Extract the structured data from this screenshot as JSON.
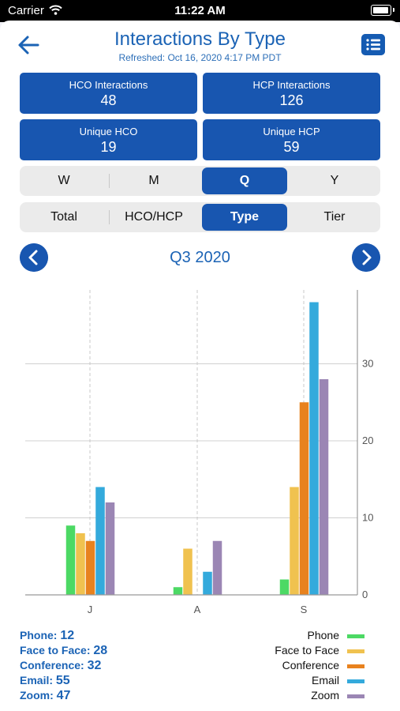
{
  "status_bar": {
    "carrier": "Carrier",
    "time": "11:22 AM"
  },
  "header": {
    "title": "Interactions By Type",
    "refreshed": "Refreshed: Oct 16, 2020 4:17 PM PDT"
  },
  "stats": [
    {
      "label": "HCO Interactions",
      "value": "48"
    },
    {
      "label": "HCP Interactions",
      "value": "126"
    },
    {
      "label": "Unique HCO",
      "value": "19"
    },
    {
      "label": "Unique HCP",
      "value": "59"
    }
  ],
  "period_selector": {
    "options": [
      "W",
      "M",
      "Q",
      "Y"
    ],
    "selected": "Q"
  },
  "view_selector": {
    "options": [
      "Total",
      "HCO/HCP",
      "Type",
      "Tier"
    ],
    "selected": "Type"
  },
  "period_nav": {
    "label": "Q3 2020"
  },
  "colors": {
    "accent": "#1856b0",
    "Phone": "#4cd964",
    "Face to Face": "#f0c24f",
    "Conference": "#e8821e",
    "Email": "#34aadc",
    "Zoom": "#9b86b4"
  },
  "chart_data": {
    "type": "bar",
    "categories": [
      "J",
      "A",
      "S"
    ],
    "series": [
      {
        "name": "Phone",
        "values": [
          9,
          1,
          2
        ]
      },
      {
        "name": "Face to Face",
        "values": [
          8,
          6,
          14
        ]
      },
      {
        "name": "Conference",
        "values": [
          7,
          0,
          25
        ]
      },
      {
        "name": "Email",
        "values": [
          14,
          3,
          38
        ]
      },
      {
        "name": "Zoom",
        "values": [
          12,
          7,
          28
        ]
      }
    ],
    "ylim": [
      0,
      40
    ],
    "yticks": [
      "0",
      "10",
      "20",
      "30"
    ],
    "grid": true
  },
  "totals": [
    {
      "label": "Phone:",
      "value": "12"
    },
    {
      "label": "Face to Face:",
      "value": "28"
    },
    {
      "label": "Conference:",
      "value": "32"
    },
    {
      "label": "Email:",
      "value": "55"
    },
    {
      "label": "Zoom:",
      "value": "47"
    }
  ],
  "legend": [
    "Phone",
    "Face to Face",
    "Conference",
    "Email",
    "Zoom"
  ]
}
